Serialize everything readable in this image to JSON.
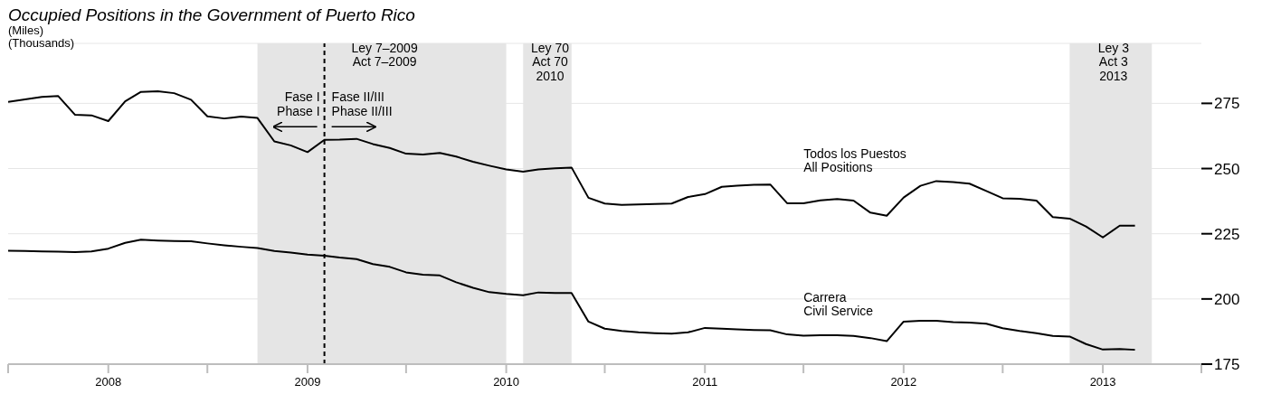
{
  "chart_data": {
    "type": "line",
    "title": "Occupied Positions in the Government of Puerto Rico",
    "ylabel": "(Miles)\n(Thousands)",
    "x": [
      "2007-07",
      "2007-08",
      "2007-09",
      "2007-10",
      "2007-11",
      "2007-12",
      "2008-01",
      "2008-02",
      "2008-03",
      "2008-04",
      "2008-05",
      "2008-06",
      "2008-07",
      "2008-08",
      "2008-09",
      "2008-10",
      "2008-11",
      "2008-12",
      "2009-01",
      "2009-02",
      "2009-03",
      "2009-04",
      "2009-05",
      "2009-06",
      "2009-07",
      "2009-08",
      "2009-09",
      "2009-10",
      "2009-11",
      "2009-12",
      "2010-01",
      "2010-02",
      "2010-03",
      "2010-04",
      "2010-05",
      "2010-06",
      "2010-07",
      "2010-08",
      "2010-09",
      "2010-10",
      "2010-11",
      "2010-12",
      "2011-01",
      "2011-02",
      "2011-03",
      "2011-04",
      "2011-05",
      "2011-06",
      "2011-07",
      "2011-08",
      "2011-09",
      "2011-10",
      "2011-11",
      "2011-12",
      "2012-01",
      "2012-02",
      "2012-03",
      "2012-04",
      "2012-05",
      "2012-06",
      "2012-07",
      "2012-08",
      "2012-09",
      "2012-10",
      "2012-11",
      "2012-12",
      "2013-01",
      "2013-02",
      "2013-03"
    ],
    "series": [
      {
        "name": "Todos los Puestos\nAll Positions",
        "color": "#000000",
        "values": [
          275.6,
          276.5,
          277.5,
          277.8,
          270.6,
          270.4,
          268.2,
          275.8,
          279.4,
          279.6,
          278.9,
          276.4,
          270.0,
          269.2,
          269.9,
          269.4,
          260.4,
          258.9,
          256.3,
          261.0,
          261.1,
          261.4,
          259.4,
          257.9,
          255.7,
          255.4,
          256.0,
          254.6,
          252.6,
          251.1,
          249.7,
          248.8,
          249.7,
          250.1,
          250.4,
          238.8,
          236.6,
          236.1,
          236.2,
          236.4,
          236.6,
          239.1,
          240.2,
          243.0,
          243.4,
          243.8,
          243.9,
          236.7,
          236.7,
          237.8,
          238.3,
          237.7,
          233.1,
          231.9,
          238.9,
          243.4,
          245.2,
          244.8,
          244.2,
          241.4,
          238.6,
          238.4,
          237.7,
          231.4,
          230.8,
          227.8,
          223.6,
          228.1,
          228.1
        ]
      },
      {
        "name": "Carrera\nCivil Service",
        "color": "#000000",
        "values": [
          218.5,
          218.4,
          218.2,
          218.1,
          218.0,
          218.2,
          219.3,
          221.5,
          222.7,
          222.4,
          222.2,
          222.1,
          221.3,
          220.6,
          220.0,
          219.5,
          218.4,
          217.8,
          217.0,
          216.6,
          215.9,
          215.3,
          213.4,
          212.3,
          210.2,
          209.3,
          209.0,
          206.4,
          204.3,
          202.6,
          201.9,
          201.4,
          202.5,
          202.3,
          202.3,
          191.3,
          188.6,
          187.7,
          187.2,
          186.9,
          186.7,
          187.2,
          188.9,
          188.6,
          188.3,
          188.1,
          188.0,
          186.4,
          185.9,
          186.1,
          186.1,
          185.8,
          185.0,
          183.8,
          191.3,
          191.6,
          191.6,
          191.1,
          190.9,
          190.5,
          188.8,
          187.7,
          186.9,
          185.8,
          185.6,
          182.7,
          180.6,
          180.8,
          180.5
        ]
      }
    ],
    "xlim": [
      "2007-07",
      "2013-07"
    ],
    "xticks": [
      {
        "value": "2007-07",
        "label": null
      },
      {
        "value": "2008-01",
        "label": "2008"
      },
      {
        "value": "2008-07",
        "label": null
      },
      {
        "value": "2009-01",
        "label": "2009"
      },
      {
        "value": "2009-07",
        "label": null
      },
      {
        "value": "2010-01",
        "label": "2010"
      },
      {
        "value": "2010-07",
        "label": null
      },
      {
        "value": "2011-01",
        "label": "2011"
      },
      {
        "value": "2011-07",
        "label": null
      },
      {
        "value": "2012-01",
        "label": "2012"
      },
      {
        "value": "2012-07",
        "label": null
      },
      {
        "value": "2013-01",
        "label": "2013"
      },
      {
        "value": "2013-07",
        "label": null
      }
    ],
    "ylim": [
      175,
      298
    ],
    "yticks": [
      175,
      200,
      225,
      250,
      275
    ],
    "grid": "y",
    "bands": [
      {
        "axis": "x",
        "from": "2008-10",
        "to": "2010-01",
        "label": "Ley 7–2009\nAct 7–2009",
        "color": "#e5e5e5"
      },
      {
        "axis": "x",
        "from": "2010-02",
        "to": "2010-05",
        "label": "Ley 70\nAct 70\n2010",
        "color": "#e5e5e5"
      },
      {
        "axis": "x",
        "from": "2012-11",
        "to": "2013-04",
        "label": "Ley 3\nAct 3\n2013",
        "color": "#e5e5e5"
      }
    ],
    "ref_lines": [
      {
        "axis": "x",
        "value": "2009-02",
        "color": "#000000",
        "line_style": "dashed"
      }
    ],
    "annotations": [
      {
        "text": "Fase I\nPhase I",
        "x": "2009-02",
        "y": 266
      },
      {
        "text": "Fase II/III\nPhase II/III",
        "x": "2009-02",
        "y": 266
      }
    ]
  }
}
